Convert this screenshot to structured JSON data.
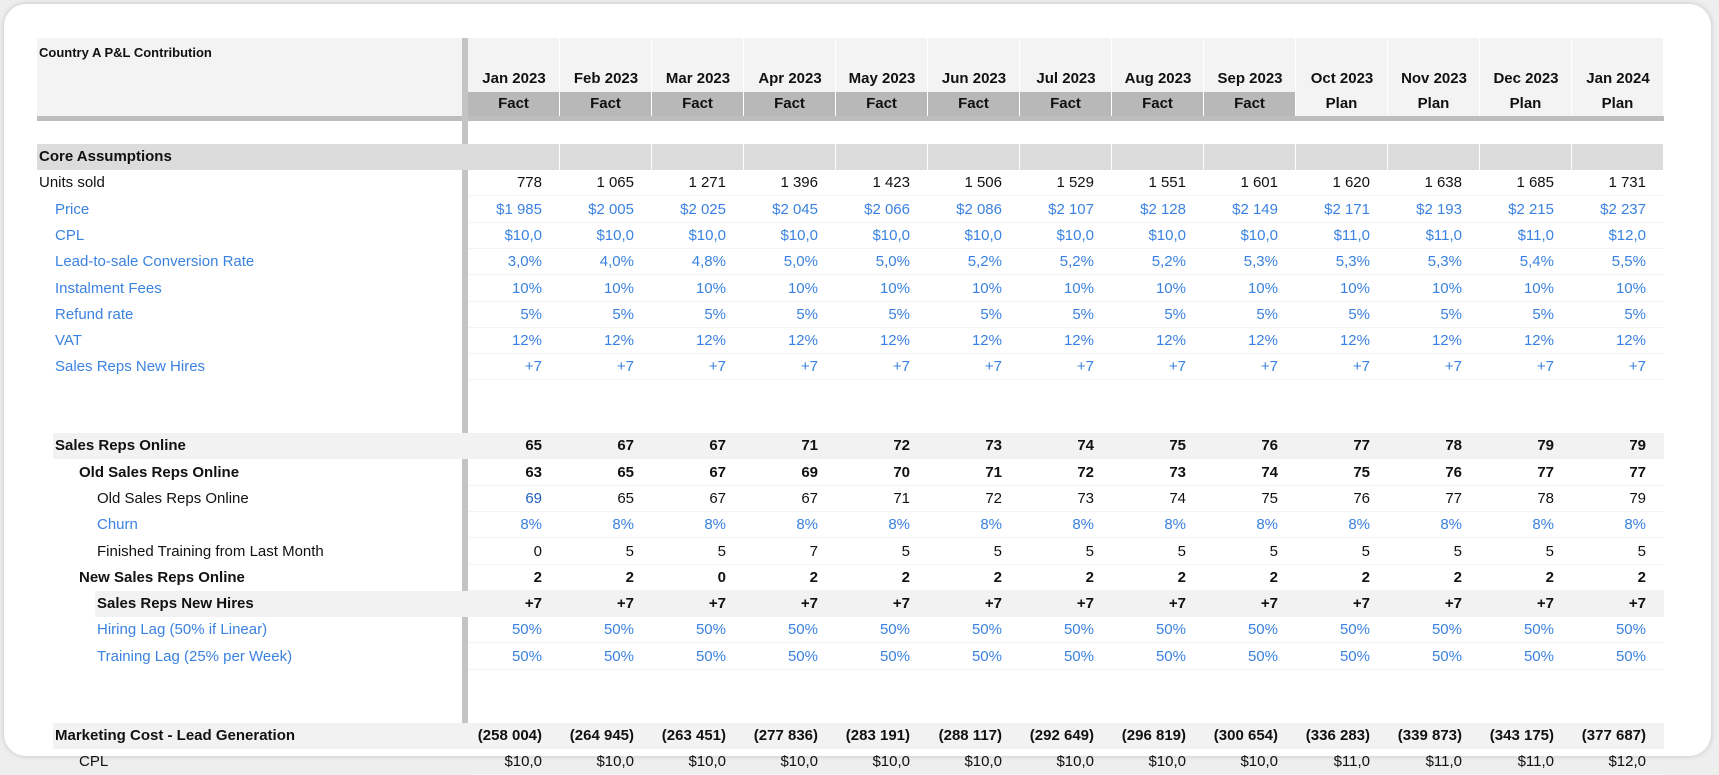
{
  "title": "Country A P&L Contribution",
  "columns": [
    {
      "month": "Jan 2023",
      "status": "Fact"
    },
    {
      "month": "Feb 2023",
      "status": "Fact"
    },
    {
      "month": "Mar 2023",
      "status": "Fact"
    },
    {
      "month": "Apr 2023",
      "status": "Fact"
    },
    {
      "month": "May 2023",
      "status": "Fact"
    },
    {
      "month": "Jun 2023",
      "status": "Fact"
    },
    {
      "month": "Jul 2023",
      "status": "Fact"
    },
    {
      "month": "Aug 2023",
      "status": "Fact"
    },
    {
      "month": "Sep 2023",
      "status": "Fact"
    },
    {
      "month": "Oct 2023",
      "status": "Plan"
    },
    {
      "month": "Nov 2023",
      "status": "Plan"
    },
    {
      "month": "Dec 2023",
      "status": "Plan"
    },
    {
      "month": "Jan 2024",
      "status": "Plan"
    }
  ],
  "rows": [
    {
      "label": "Core Assumptions"
    },
    {
      "label": "Units sold",
      "values": [
        "778",
        "1 065",
        "1 271",
        "1 396",
        "1 423",
        "1 506",
        "1 529",
        "1 551",
        "1 601",
        "1 620",
        "1 638",
        "1 685",
        "1 731"
      ]
    },
    {
      "label": "Price",
      "values": [
        "$1 985",
        "$2 005",
        "$2 025",
        "$2 045",
        "$2 066",
        "$2 086",
        "$2 107",
        "$2 128",
        "$2 149",
        "$2 171",
        "$2 193",
        "$2 215",
        "$2 237"
      ]
    },
    {
      "label": "CPL",
      "values": [
        "$10,0",
        "$10,0",
        "$10,0",
        "$10,0",
        "$10,0",
        "$10,0",
        "$10,0",
        "$10,0",
        "$10,0",
        "$11,0",
        "$11,0",
        "$11,0",
        "$12,0"
      ]
    },
    {
      "label": "Lead-to-sale Conversion Rate",
      "values": [
        "3,0%",
        "4,0%",
        "4,8%",
        "5,0%",
        "5,0%",
        "5,2%",
        "5,2%",
        "5,2%",
        "5,3%",
        "5,3%",
        "5,3%",
        "5,4%",
        "5,5%"
      ]
    },
    {
      "label": "Instalment Fees",
      "values": [
        "10%",
        "10%",
        "10%",
        "10%",
        "10%",
        "10%",
        "10%",
        "10%",
        "10%",
        "10%",
        "10%",
        "10%",
        "10%"
      ]
    },
    {
      "label": "Refund rate",
      "values": [
        "5%",
        "5%",
        "5%",
        "5%",
        "5%",
        "5%",
        "5%",
        "5%",
        "5%",
        "5%",
        "5%",
        "5%",
        "5%"
      ]
    },
    {
      "label": "VAT",
      "values": [
        "12%",
        "12%",
        "12%",
        "12%",
        "12%",
        "12%",
        "12%",
        "12%",
        "12%",
        "12%",
        "12%",
        "12%",
        "12%"
      ]
    },
    {
      "label": "Sales Reps New Hires",
      "values": [
        "+7",
        "+7",
        "+7",
        "+7",
        "+7",
        "+7",
        "+7",
        "+7",
        "+7",
        "+7",
        "+7",
        "+7",
        "+7"
      ]
    },
    {
      "label": "Sales Reps Online",
      "values": [
        "65",
        "67",
        "67",
        "71",
        "72",
        "73",
        "74",
        "75",
        "76",
        "77",
        "78",
        "79",
        "79"
      ]
    },
    {
      "label": "Old Sales Reps Online",
      "values": [
        "63",
        "65",
        "67",
        "69",
        "70",
        "71",
        "72",
        "73",
        "74",
        "75",
        "76",
        "77",
        "77"
      ]
    },
    {
      "label": "Old Sales Reps Online",
      "values": [
        "69",
        "65",
        "67",
        "67",
        "71",
        "72",
        "73",
        "74",
        "75",
        "76",
        "77",
        "78",
        "79"
      ]
    },
    {
      "label": "Churn",
      "values": [
        "8%",
        "8%",
        "8%",
        "8%",
        "8%",
        "8%",
        "8%",
        "8%",
        "8%",
        "8%",
        "8%",
        "8%",
        "8%"
      ]
    },
    {
      "label": "Finished Training from Last Month",
      "values": [
        "0",
        "5",
        "5",
        "7",
        "5",
        "5",
        "5",
        "5",
        "5",
        "5",
        "5",
        "5",
        "5"
      ]
    },
    {
      "label": "New Sales Reps Online",
      "values": [
        "2",
        "2",
        "0",
        "2",
        "2",
        "2",
        "2",
        "2",
        "2",
        "2",
        "2",
        "2",
        "2"
      ]
    },
    {
      "label": "Sales Reps New Hires",
      "values": [
        "+7",
        "+7",
        "+7",
        "+7",
        "+7",
        "+7",
        "+7",
        "+7",
        "+7",
        "+7",
        "+7",
        "+7",
        "+7"
      ]
    },
    {
      "label": "Hiring Lag (50% if Linear)",
      "values": [
        "50%",
        "50%",
        "50%",
        "50%",
        "50%",
        "50%",
        "50%",
        "50%",
        "50%",
        "50%",
        "50%",
        "50%",
        "50%"
      ]
    },
    {
      "label": "Training Lag (25% per Week)",
      "values": [
        "50%",
        "50%",
        "50%",
        "50%",
        "50%",
        "50%",
        "50%",
        "50%",
        "50%",
        "50%",
        "50%",
        "50%",
        "50%"
      ]
    },
    {
      "label": "Marketing Cost - Lead Generation",
      "values": [
        "(258 004)",
        "(264 945)",
        "(263 451)",
        "(277 836)",
        "(283 191)",
        "(288 117)",
        "(292 649)",
        "(296 819)",
        "(300 654)",
        "(336 283)",
        "(339 873)",
        "(343 175)",
        "(377 687)"
      ]
    },
    {
      "label": "CPL",
      "values": [
        "$10,0",
        "$10,0",
        "$10,0",
        "$10,0",
        "$10,0",
        "$10,0",
        "$10,0",
        "$10,0",
        "$10,0",
        "$11,0",
        "$11,0",
        "$11,0",
        "$12,0"
      ]
    }
  ]
}
